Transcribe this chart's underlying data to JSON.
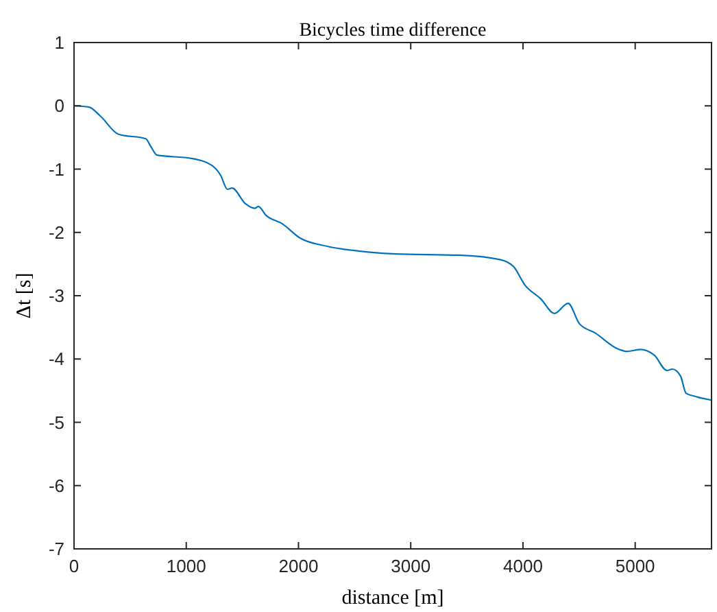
{
  "chart_data": {
    "type": "line",
    "title": "Bicycles time difference",
    "xlabel": "distance [m]",
    "ylabel": "Δt [s]",
    "xlim": [
      0,
      5680
    ],
    "xticks": [
      0,
      1000,
      2000,
      3000,
      4000,
      5000
    ],
    "ylim": [
      -7,
      1
    ],
    "yticks": [
      -7,
      -6,
      -5,
      -4,
      -3,
      -2,
      -1,
      0,
      1
    ],
    "grid": false,
    "series": [
      {
        "color": "#0072bd",
        "x": [
          0,
          133,
          234,
          397,
          640,
          680,
          740,
          1044,
          1226,
          1307,
          1367,
          1408,
          1529,
          1610,
          1642,
          1711,
          1853,
          2015,
          2257,
          2621,
          2864,
          3431,
          3795,
          3916,
          4017,
          4159,
          4280,
          4402,
          4502,
          4644,
          4846,
          4927,
          5049,
          5170,
          5283,
          5332,
          5404,
          5453,
          5534,
          5680
        ],
        "values": [
          0,
          -0.02,
          -0.16,
          -0.45,
          -0.52,
          -0.63,
          -0.78,
          -0.83,
          -0.94,
          -1.1,
          -1.32,
          -1.3,
          -1.55,
          -1.62,
          -1.59,
          -1.73,
          -1.86,
          -2.09,
          -2.22,
          -2.31,
          -2.34,
          -2.36,
          -2.43,
          -2.54,
          -2.83,
          -3.05,
          -3.28,
          -3.12,
          -3.44,
          -3.59,
          -3.84,
          -3.88,
          -3.85,
          -3.94,
          -4.18,
          -4.16,
          -4.27,
          -4.54,
          -4.59,
          -4.65
        ]
      }
    ]
  }
}
